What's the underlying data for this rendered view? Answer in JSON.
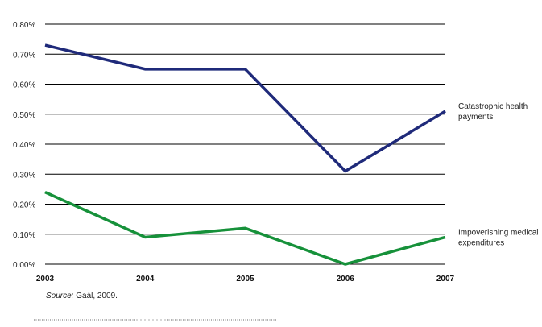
{
  "chart_data": {
    "type": "line",
    "title": "",
    "xlabel": "",
    "ylabel": "",
    "x": [
      "2003",
      "2004",
      "2005",
      "2006",
      "2007"
    ],
    "ylim": [
      0,
      0.8
    ],
    "yticks": [
      "0.00%",
      "0.10%",
      "0.20%",
      "0.30%",
      "0.40%",
      "0.50%",
      "0.60%",
      "0.70%",
      "0.80%"
    ],
    "grid": true,
    "legend_placement": "right (inline labels)",
    "series": [
      {
        "name": "Catastrophic health payments",
        "label_lines": [
          "Catastrophic health",
          "payments"
        ],
        "color": "#1f2a7a",
        "values": [
          0.73,
          0.65,
          0.65,
          0.31,
          0.51
        ]
      },
      {
        "name": "Impoverishing medical expenditures",
        "label_lines": [
          "Impoverishing medical",
          "expenditures"
        ],
        "color": "#16913a",
        "values": [
          0.24,
          0.09,
          0.12,
          0.0,
          0.09
        ]
      }
    ],
    "source_label": "Source:",
    "source_text": " Gaál, 2009."
  }
}
